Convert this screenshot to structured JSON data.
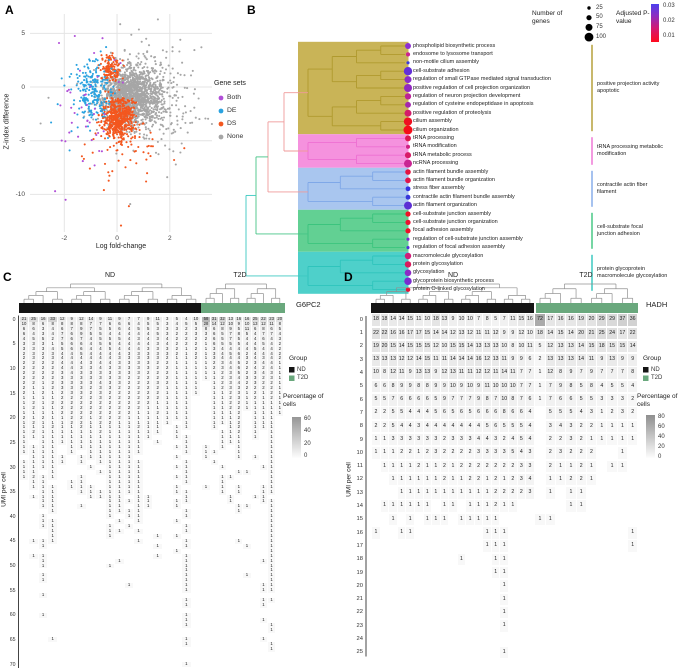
{
  "panelA": {
    "label": "A",
    "xlabel": "Log fold-change",
    "ylabel": "Z-index difference",
    "xticks": [
      -2,
      0,
      2
    ],
    "yticks": [
      5,
      0,
      -5,
      -10
    ],
    "legend": {
      "title": "Gene sets",
      "items": [
        {
          "label": "Both",
          "color": "#b14fd8"
        },
        {
          "label": "DE",
          "color": "#29a2e0"
        },
        {
          "label": "DS",
          "color": "#f3571f"
        },
        {
          "label": "None",
          "color": "#a6a6a6"
        }
      ]
    }
  },
  "panelB": {
    "label": "B",
    "legend_genes": {
      "title": "Number of genes",
      "sizes": [
        25,
        50,
        75,
        100
      ]
    },
    "legend_pvalue": {
      "title": "Adjusted P-value",
      "ticks": [
        "0.03",
        "0.02",
        "0.01"
      ]
    }
  },
  "panelC": {
    "label": "C",
    "legend_group": {
      "title": "Group",
      "items": [
        {
          "label": "ND",
          "color": "#151515"
        },
        {
          "label": "T2D",
          "color": "#6aa87d"
        }
      ]
    },
    "legend_pct": {
      "title": "Percentage of cells",
      "ticks": [
        60,
        40,
        20,
        0
      ]
    }
  },
  "panelD": {
    "label": "D",
    "legend_group": {
      "title": "Group",
      "items": [
        {
          "label": "ND",
          "color": "#151515"
        },
        {
          "label": "T2D",
          "color": "#6aa87d"
        }
      ]
    },
    "legend_pct": {
      "title": "Percentage of cells",
      "ticks": [
        80,
        60,
        40,
        20,
        0
      ]
    }
  },
  "chart_data": [
    {
      "panel": "A",
      "type": "scatter",
      "xlabel": "Log fold-change",
      "ylabel": "Z-index difference",
      "xlim": [
        -3.3,
        3.6
      ],
      "ylim": [
        -13.5,
        6.8
      ],
      "series": [
        {
          "name": "None",
          "color": "#a6a6a6",
          "clusters": [
            {
              "cx": 0.55,
              "cy": -0.9,
              "sx": 0.55,
              "sy": 1.35,
              "n": 1500
            },
            {
              "cx": 1.3,
              "cy": -1.2,
              "sx": 1.0,
              "sy": 2.3,
              "n": 260
            }
          ],
          "outliers": [
            [
              1.55,
              6.3
            ],
            [
              0.12,
              5.85
            ],
            [
              3.2,
              3.7
            ],
            [
              -2.9,
              -3.4
            ],
            [
              2.95,
              -0.2
            ],
            [
              1.9,
              -8.4
            ],
            [
              0.5,
              -10.9
            ],
            [
              2.4,
              4.4
            ],
            [
              -2.6,
              -1.0
            ]
          ]
        },
        {
          "name": "DS",
          "color": "#f3571f",
          "clusters": [
            {
              "cx": 0.05,
              "cy": -2.9,
              "sx": 0.3,
              "sy": 0.95,
              "n": 520
            },
            {
              "cx": -0.25,
              "cy": 1.7,
              "sx": 0.2,
              "sy": 0.6,
              "n": 130
            },
            {
              "cx": 0.2,
              "cy": -5.2,
              "sx": 0.75,
              "sy": 1.8,
              "n": 60
            }
          ],
          "outliers": [
            [
              2.55,
              -5.7
            ],
            [
              0.45,
              -11.1
            ],
            [
              0.15,
              -12.9
            ],
            [
              -0.5,
              -9.6
            ],
            [
              1.1,
              -8.8
            ]
          ]
        },
        {
          "name": "DE",
          "color": "#29a2e0",
          "clusters": [
            {
              "cx": -0.9,
              "cy": -0.4,
              "sx": 0.35,
              "sy": 1.5,
              "n": 215
            }
          ],
          "outliers": [
            [
              -2.25,
              -1.6
            ],
            [
              -2.5,
              -3.3
            ],
            [
              -1.8,
              -5.9
            ],
            [
              -2.1,
              0.8
            ]
          ]
        },
        {
          "name": "Both",
          "color": "#b14fd8",
          "clusters": [
            {
              "cx": -1.0,
              "cy": -1.8,
              "sx": 0.55,
              "sy": 2.4,
              "n": 36
            }
          ],
          "outliers": [
            [
              -2.35,
              -9.7
            ],
            [
              -1.95,
              -10.5
            ],
            [
              -1.3,
              -6.9
            ],
            [
              -0.85,
              -7.3
            ],
            [
              -2.2,
              4.1
            ],
            [
              -1.6,
              4.75
            ],
            [
              -0.55,
              4.55
            ]
          ]
        }
      ]
    },
    {
      "panel": "B",
      "type": "dendrogram-dotplot",
      "size_legend": "Number of genes",
      "color_legend": "Adjusted P-value",
      "pvalue_gradient": [
        "#4c40ee",
        "#8a2ec2",
        "#d4186e",
        "#ff0a1e"
      ],
      "clusters": [
        {
          "fill": "#c9b457",
          "line": "#b09a2e",
          "annotation": [
            "positive projection activity",
            "apoptotic"
          ],
          "items": [
            {
              "term": "phospholipid biosynthetic process",
              "genes": 55,
              "color": "#8d2ed2"
            },
            {
              "term": "endosome to lysosome transport",
              "genes": 30,
              "color": "#cc2390"
            },
            {
              "term": "non-motile cilium assembly",
              "genes": 14,
              "color": "#3b3bdf"
            },
            {
              "term": "cell-substrate adhesion",
              "genes": 90,
              "color": "#6330d8"
            },
            {
              "term": "regulation of small GTPase mediated signal transduction",
              "genes": 70,
              "color": "#8b2cc9"
            },
            {
              "term": "positive regulation of cell projection organization",
              "genes": 85,
              "color": "#9029c0"
            },
            {
              "term": "regulation of neuron projection development",
              "genes": 60,
              "color": "#bc2496"
            },
            {
              "term": "regulation of cysteine endopeptidase in apoptosis",
              "genes": 55,
              "color": "#a427ae"
            },
            {
              "term": "positive regulation of proteolysis",
              "genes": 70,
              "color": "#d41c6a"
            },
            {
              "term": "cilium assembly",
              "genes": 90,
              "color": "#ef1020"
            },
            {
              "term": "cilium organization",
              "genes": 100,
              "color": "#f50e19"
            }
          ]
        },
        {
          "fill": "#f592de",
          "line": "#ee6fd2",
          "annotation": [
            "tRNA processing metabolic",
            "modification"
          ],
          "items": [
            {
              "term": "tRNA processing",
              "genes": 55,
              "color": "#dc1850"
            },
            {
              "term": "tRNA modification",
              "genes": 28,
              "color": "#cf2184"
            },
            {
              "term": "tRNA metabolic process",
              "genes": 58,
              "color": "#d81b68"
            },
            {
              "term": "ncRNA processing",
              "genes": 85,
              "color": "#c92593"
            }
          ]
        },
        {
          "fill": "#a9c6ef",
          "line": "#7fa8e8",
          "annotation": [
            "contractile actin fiber",
            "filament"
          ],
          "items": [
            {
              "term": "actin filament bundle assembly",
              "genes": 50,
              "color": "#e41440"
            },
            {
              "term": "actin filament bundle organization",
              "genes": 52,
              "color": "#e0164b"
            },
            {
              "term": "stress fiber assembly",
              "genes": 40,
              "color": "#3232e2"
            },
            {
              "term": "contractile actin filament bundle assembly",
              "genes": 40,
              "color": "#3737da"
            },
            {
              "term": "actin filament organization",
              "genes": 85,
              "color": "#5c2ed4"
            }
          ]
        },
        {
          "fill": "#62d093",
          "line": "#3cc47e",
          "annotation": [
            "cell-substrate focal",
            "junction adhesion"
          ],
          "items": [
            {
              "term": "cell-substrate junction assembly",
              "genes": 45,
              "color": "#ee1126"
            },
            {
              "term": "cell-substrate junction organization",
              "genes": 45,
              "color": "#ec1230"
            },
            {
              "term": "focal adhesion assembly",
              "genes": 45,
              "color": "#ee1128"
            },
            {
              "term": "regulation of cell-substrate junction assembly",
              "genes": 13,
              "color": "#7b2bd0"
            },
            {
              "term": "regulation of focal adhesion assembly",
              "genes": 13,
              "color": "#4f33da"
            }
          ]
        },
        {
          "fill": "#4ed0ca",
          "line": "#2fc4bc",
          "annotation": [
            "protein glycoprotein",
            "macromolecule glycosylation"
          ],
          "items": [
            {
              "term": "macromolecule glycosylation",
              "genes": 62,
              "color": "#d11d7a"
            },
            {
              "term": "protein glycosylation",
              "genes": 62,
              "color": "#da1a5e"
            },
            {
              "term": "glycosylation",
              "genes": 65,
              "color": "#8c2bc6"
            },
            {
              "term": "glycoprotein biosynthetic process",
              "genes": 78,
              "color": "#7a2cd0"
            },
            {
              "term": "protein O-linked glycosylation",
              "genes": 36,
              "color": "#e61438"
            }
          ]
        }
      ]
    },
    {
      "panel": "C",
      "type": "heatmap",
      "gene": "G6PC2",
      "ylabel": "UMI per cell",
      "legend": "Percentage of cells",
      "groups": [
        {
          "name": "ND",
          "color": "#151515",
          "cols": 19
        },
        {
          "name": "T2D",
          "color": "#6aa87d",
          "cols": 10
        }
      ],
      "rows": [
        "21 25 16 33 12 9 12 14 9 11 9 7 7 9 11 3 5 4 10 58 31 32 13 16 16 25 22 23 20",
        "10 8 6 8 8 8 8 7 7 6 6 6 4 5 5 3 4 5 5 28 14 12 10 9 10 13 12 11 8",
        "6 6 3 4 6 7 9 7 5 5 6 4 5 5 3 3 3 2 3 8 6 8 9 5 11 6 8 6 5",
        "6 4 3 4 7 6 9 5 5 4 4 4 4 4 5 3 2 2 3 3 6 5 7 8 5 4 7 7 4",
        "4 5 5 2 7 6 7 4 5 5 5 4 3 4 3 4 2 2 2 2 6 5 7 5 4 4 6 4 3",
        "3 3 3 1 5 6 6 4 5 6 4 4 4 4 3 4 2 2 2 1 6 5 5 5 4 4 5 4 2",
        "3 3 3 4 5 6 6 4 4 5 4 4 4 3 3 3 2 1 2 1 3 4 4 4 4 5 4 4 2",
        "2 3 2 3 4 4 5 4 4 4 4 3 3 3 3 3 2 1 2 1 3 4 5 6 2 4 4 4 2",
        "2 3 2 3 4 4 4 4 4 4 3 3 3 3 3 2 1 1 2 1 3 4 4 4 3 4 3 4 2",
        "2 2 2 2 4 4 4 3 4 4 3 3 3 3 2 2 1 1 1 1 2 3 4 5 2 3 4 4 1",
        "2 2 2 2 4 4 3 3 4 3 3 3 3 3 2 2 1 1 1 1 2 3 4 6 2 4 2 4 1",
        "2 2 2 2 3 4 3 3 3 3 3 3 3 2 2 2 1 1 1 1 1 2 3 5 2 3 4 3 1",
        "2 2 2 2 3 3 3 3 3 3 3 2 2 2 2 2 1 1 1 1 1 2 3 4 3 3 2 3 1",
        "2 2 1 2 3 3 3 3 4 3 3 2 2 2 3 2 1 1 1 . 1 2 3 4 2 3 2 2 1",
        "2 1 1 2 3 3 3 2 3 3 2 2 2 2 2 1 1 1 1 . 1 2 3 3 2 2 2 2 1",
        "2 1 2 1 2 3 3 2 3 2 2 2 2 2 2 1 1 1 1 . 1 1 2 3 1 2 1 2 1",
        "1 1 1 1 2 2 2 2 3 2 2 2 2 2 2 1 1 1 . . 1 1 2 3 1 2 1 2 1",
        "1 2 1 2 2 2 2 2 2 2 2 2 2 2 1 1 1 1 . . 1 1 2 2 1 1 1 1 1",
        "1 2 1 1 2 2 2 2 2 2 2 2 2 1 1 1 1 1 . . 1 1 2 2 1 1 1 1 1",
        "1 1 1 1 2 2 2 2 2 2 2 2 1 1 2 1 1 1 . . 1 1 1 2 . 1 1 1 1",
        "2 1 2 1 1 2 2 1 2 2 2 1 1 1 1 1 1 1 . . 1 1 1 2 . 1 1 1 .",
        "1 2 1 1 1 2 2 1 2 2 1 1 1 1 1 1 . 1 . . 1 1 1 2 . 1 1 1 .",
        "1 1 1 2 1 1 2 1 1 1 1 1 2 1 1 . 1 1 . . 1 . 1 2 . 1 1 1 .",
        "1 2 1 1 1 1 1 1 2 1 1 1 1 1 1 . 1 . . . . 1 1 2 . 1 . 1 .",
        "1 1 1 1 1 1 1 1 1 1 1 1 1 1 . . 1 1 . . . 1 1 1 . 1 . 1 .",
        "1 . 1 1 1 1 1 1 1 1 1 1 1 . 1 . . 1 . . . 1 1 1 . . . 1 .",
        "1 1 1 1 . 1 1 1 1 1 1 1 1 . . . 1 1 . 1 . 1 . 1 . . . 1 .",
        "1 1 1 1 . 1 . 1 1 1 1 1 1 . . . . 1 . 1 1 . . 1 . . . 1 .",
        ". 1 1 1 1 . 1 1 1 1 1 1 . . . . 1 . . 1 . . . 1 . 1 . 1 .",
        "1 1 1 1 1 . 1 . 1 1 1 1 1 . . . . 1 . . 1 . . . . . . 1 .",
        "1 1 1 1 . . . 1 . 1 1 1 1 . . . 1 1 . . . 1 . . . . 1 1 .",
        "1 1 . 1 . . . . 1 1 1 1 1 . . . . 1 . . . . . 1 1 . . 1 .",
        "1 2 1 1 . . 1 . . 1 1 1 1 . . . 1 1 . . . 1 1 . . . . 1 .",
        ". 1 1 . . 1 1 . . 1 1 1 1 . . . . 1 . . . 1 . . . . . 1 .",
        ". 1 1 1 . 1 1 1 . 1 1 1 1 . . . 1 . . 1 . 1 . 1 . . 1 1 .",
        ". . 1 1 . . 1 1 1 1 1 1 1 . . . 1 1 . . . 1 . 1 . . 1 1 .",
        ". 1 1 1 . . . 1 1 1 1 . 1 1 . . . 1 . . . . 1 . . 1 1 . .",
        ". . 1 1 . . . . . 1 1 1 1 1 . . 1 1 . . . . 1 . . . 1 1 .",
        ". . 1 1 . . 1 . . 1 1 . 1 1 . . 1 . . . . . . 1 1 . . 1 .",
        ". . . 1 . . . . . 1 1 1 1 . . . . 1 . . . . . 1 . . . 1 .",
        ". . 1 . . . . . . 1 . 1 1 . . . . 1 . . . . . . . . . 1 .",
        ". . 1 1 . . . . . . 1 . 1 . . . 1 . . . . . . . . . . 1 .",
        ". . 1 1 . . . . . 1 . 1 . . . . . 1 . . . . . . . . . 1 .",
        ". . . 1 . . . . . 1 1 . 1 . . . . 1 . . . . . . . . . 1 .",
        ". . . 1 . . . . . 1 . . . . 1 . 1 . . . . . . . . . . 1 .",
        ". 1 1 1 . . . . . . . . 1 . . . . 1 . . . . . 1 . . . 1 .",
        ". . 1 . . . . . . . . . . . 1 . . 1 . . . . . . 1 . . 1 .",
        ". . . . . . . . . . . . . . . . 1 . . . . . . . . . . 1 .",
        ". 1 1 . . . . . . . . . . . 1 . . 1 . . . . . . . . . 1 .",
        ". . 1 . . . . . . . 1 . . . . . . 1 . . . . . . . . 1 1 .",
        ". . 1 . . . . . . 1 . . . . . . . 1 . . . . . . . . . 1 .",
        ". . . . . . . . . . . . . . . . . 1 . . . . . . . . . 1 .",
        ". . 1 . . . . . . . . . . . . . . 1 . . . . . . 1 . . 1 .",
        ". . 1 . . . . . . . . . . . . . . 1 . . . . . . . . . 1 .",
        ". . . . . . . . . . . 1 . . . . . 1 . . . . . . . . 1 1 .",
        ". . . . . . . . . . . . . . . . . 1 . . . . . . . . 1 1 .",
        ". . 1",
        ". . . . . . . . . . . . . . . . . 1 . . . . . . . . 1 1 .",
        ". . . . . . . . . . . . . . . . . 1 . . . . . . . . 1 . .",
        ".",
        ". . 1 . . . . . . . . . . . . . . 1",
        ". . . . . . . . . . . . . . . . . 1 . . . . . . . . 1",
        ". . . . . . . . . . . . . . . . . 1 . . . . . . . . . 1",
        ". . . . . . . . . . . . . . . . . . . . . . . . . . . 1",
        ".",
        ". . . 1 . . . . . . . . . . . . . 1 . . . . . . . . 1",
        ". . . . . . . . . . . . . . . . . 1 . . . . . . . . . 1",
        ". . . . . . . . . . . . . . . . . . . . . . . . . . . 1",
        ".",
        ".",
        ". . . . . . . . . . . . . . . . . 1"
      ]
    },
    {
      "panel": "D",
      "type": "heatmap",
      "gene": "HADH",
      "ylabel": "UMI per cell",
      "legend": "Percentage of cells",
      "groups": [
        {
          "name": "ND",
          "color": "#151515",
          "cols": 19
        },
        {
          "name": "T2D",
          "color": "#6aa87d",
          "cols": 10
        }
      ],
      "rows": [
        "18 18 14 14 15 11 10 18 13 9 10 10 7 8 5 7 11 15 16 72 17 16 16 19 20 29 29 37 36",
        "22 22 16 16 17 17 15 14 14 12 13 12 11 11 12 9 9 12 10 18 14 15 14 20 21 25 24 17 22",
        "19 20 15 14 15 15 15 12 10 15 15 14 13 13 13 10 8 10 11 5 12 13 13 14 15 18 15 15 14",
        "13 13 13 12 12 14 15 11 11 14 14 14 16 12 13 11 9 9 6 2 13 13 13 14 11 9 13 9 9",
        "10 8 12 11 9 13 13 9 12 13 11 11 12 12 11 14 11 7 7 1 12 8 9 7 9 7 7 7 8",
        "6 6 8 9 9 8 8 9 9 10 9 10 9 11 10 10 10 7 7 1 7 9 8 5 8 4 5 5 4",
        "5 5 7 6 6 6 6 5 9 7 7 7 9 8 7 10 8 7 6 1 7 6 6 5 5 3 3 3 2",
        "2 2 5 5 4 4 4 5 6 5 6 5 6 6 6 8 6 6 4 . 5 5 5 4 3 1 2 3 2",
        "2 2 5 4 4 3 4 4 4 4 4 4 4 5 6 5 5 5 4 . 3 4 3 2 2 1 1 1 1",
        "1 1 3 3 3 3 3 3 2 3 3 3 4 4 3 2 4 5 4 . 2 2 3 2 1 1 1 1 1",
        "1 1 1 2 2 1 2 3 2 2 2 2 3 3 3 3 5 4 3 . 2 3 2 2 2 . . 1 .",
        ". 1 1 1 1 2 1 1 2 1 2 2 2 2 2 2 2 3 3 . 2 1 1 2 1 . 1 1 .",
        ". . 1 1 1 1 1 1 2 1 1 2 2 1 2 1 2 3 4 . 1 1 2 2 1 . . . .",
        ". . . 1 1 1 1 1 1 1 1 1 1 1 2 2 2 2 3 . 1 . 1 1 . . . . .",
        ". 1 1 1 1 1 1 . 1 1 . 1 1 1 2 1 1 . . . . . 1 1 . . . . .",
        ". . 1 . 1 . 1 1 1 . 1 1 1 1 1 . . . . 1 1 . . . . . . . .",
        "1 . . 1 1 . . . . . . . . 1 1 1 . . . . . . . . . . . . 1",
        ". . . . . . . . . . . . . 1 1 1 . . . . . . . . . . . . 1",
        ". . . . . . . . . . 1 . . . 1 1",
        ". . . . . . . . . . . . . . 1 1",
        ". . . . . . . . . . . . . . . 1",
        ". . . . . . . . . . . . . . . 1",
        ". . . . . . . . . . . . . . . 1",
        ". . . . . . . . . . . . . . . 1",
        ".",
        ". . . . . . . . . . . . . . . 1"
      ]
    }
  ]
}
